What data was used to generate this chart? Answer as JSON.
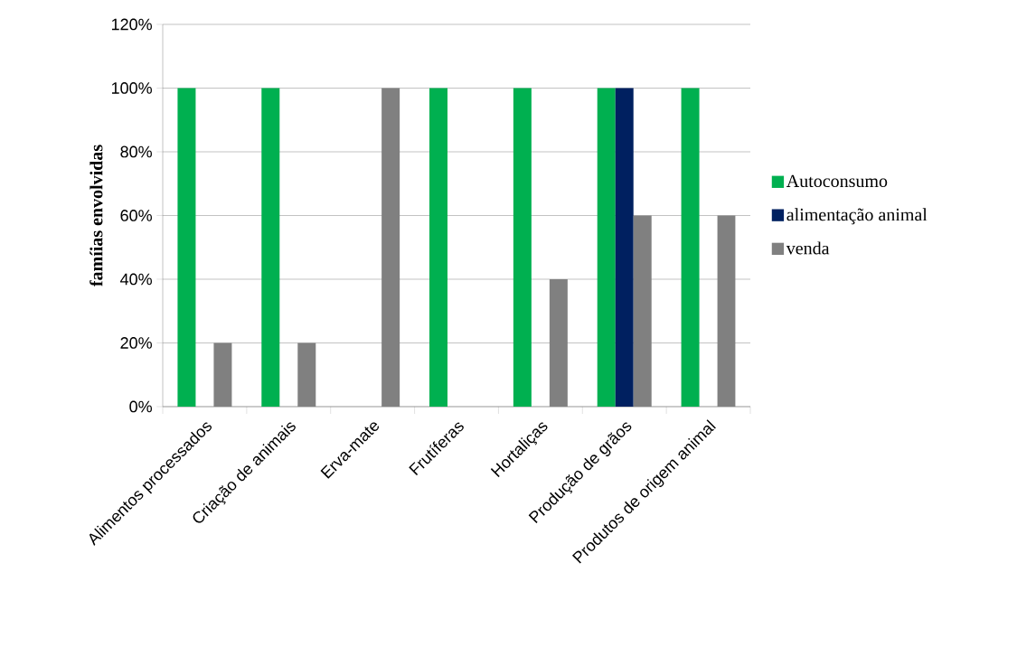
{
  "chart_data": {
    "type": "bar",
    "ylabel": "famíias envolvidas",
    "categories": [
      "Alimentos processados",
      "Criação de animais",
      "Erva-mate",
      "Frutíferas",
      "Hortaliças",
      "Produção de grãos",
      "Produtos de origem animal"
    ],
    "series": [
      {
        "name": "Autoconsumo",
        "color": "#00b050",
        "values": [
          100,
          100,
          null,
          100,
          100,
          100,
          100
        ]
      },
      {
        "name": "alimentação animal",
        "color": "#002060",
        "values": [
          null,
          null,
          null,
          null,
          null,
          100,
          null
        ]
      },
      {
        "name": "venda",
        "color": "#808080",
        "values": [
          20,
          20,
          100,
          null,
          40,
          60,
          60
        ]
      }
    ],
    "ylim": [
      0,
      120
    ],
    "yticks": [
      {
        "value": 0,
        "label": "0%"
      },
      {
        "value": 20,
        "label": "20%"
      },
      {
        "value": 40,
        "label": "40%"
      },
      {
        "value": 60,
        "label": "60%"
      },
      {
        "value": 80,
        "label": "80%"
      },
      {
        "value": 100,
        "label": "100%"
      },
      {
        "value": 120,
        "label": "120%"
      }
    ],
    "grid": "y",
    "legend": "right"
  }
}
